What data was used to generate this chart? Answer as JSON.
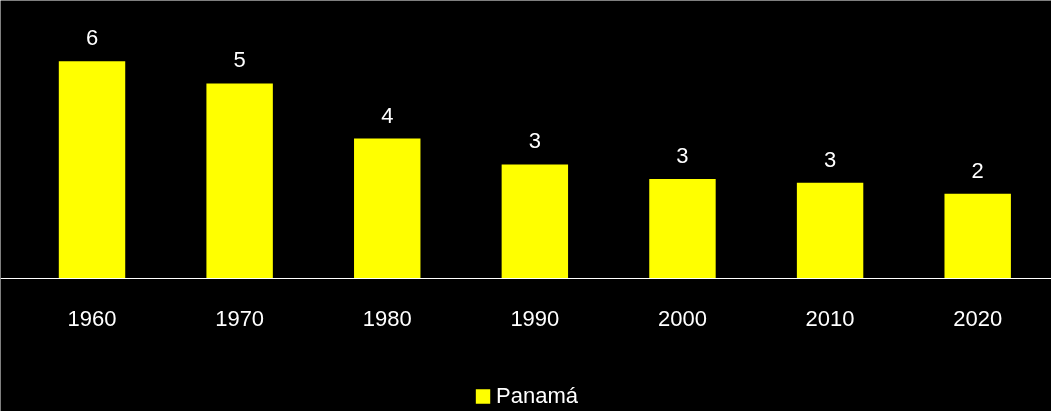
{
  "chart_data": {
    "type": "bar",
    "categories": [
      "1960",
      "1970",
      "1980",
      "1990",
      "2000",
      "2010",
      "2020"
    ],
    "series": [
      {
        "name": "Panamá",
        "color": "#ffff00",
        "values": [
          5.9,
          5.3,
          3.8,
          3.1,
          2.7,
          2.6,
          2.3
        ],
        "value_labels": [
          "6",
          "5",
          "4",
          "3",
          "3",
          "3",
          "2"
        ]
      }
    ],
    "legend": "bottom"
  }
}
